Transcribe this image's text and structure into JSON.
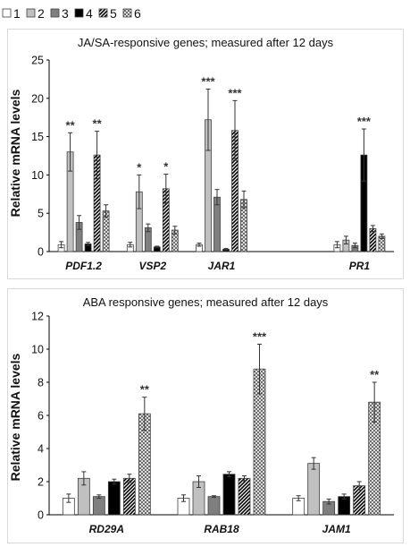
{
  "legend": [
    {
      "label": "1",
      "pattern": "white"
    },
    {
      "label": "2",
      "pattern": "lightgray"
    },
    {
      "label": "3",
      "pattern": "darkgray"
    },
    {
      "label": "4",
      "pattern": "black"
    },
    {
      "label": "5",
      "pattern": "diagonal-hatch"
    },
    {
      "label": "6",
      "pattern": "crosshatch"
    }
  ],
  "colors": {
    "c1": "#ffffff",
    "c2": "#c0c0c0",
    "c3": "#7f7f7f",
    "c4": "#000000",
    "border": "#404040"
  },
  "chart_data": [
    {
      "type": "bar",
      "title": "JA/SA-responsive genes; measured after 12 days",
      "ylabel": "Relative mRNA levels",
      "xlabel": "",
      "ylim": [
        0,
        25
      ],
      "yticks": [
        0,
        5,
        10,
        15,
        20,
        25
      ],
      "grid": false,
      "categories": [
        "PDF1.2",
        "VSP2",
        "JAR1",
        "",
        "PR1"
      ],
      "series": [
        {
          "name": "1",
          "values": [
            0.9,
            0.9,
            0.9,
            null,
            0.9
          ],
          "errors": [
            0.4,
            0.3,
            0.2,
            null,
            0.4
          ]
        },
        {
          "name": "2",
          "values": [
            13.0,
            7.8,
            17.2,
            null,
            1.5
          ],
          "errors": [
            2.5,
            2.2,
            4.0,
            null,
            0.5
          ]
        },
        {
          "name": "3",
          "values": [
            3.8,
            3.1,
            7.1,
            null,
            0.8
          ],
          "errors": [
            0.9,
            0.5,
            1.0,
            null,
            0.3
          ]
        },
        {
          "name": "4",
          "values": [
            1.0,
            0.6,
            0.3,
            null,
            12.6
          ],
          "errors": [
            0.2,
            0.1,
            0.1,
            null,
            3.4
          ]
        },
        {
          "name": "5",
          "values": [
            12.6,
            8.2,
            15.8,
            null,
            3.0
          ],
          "errors": [
            3.1,
            1.9,
            3.9,
            null,
            0.4
          ]
        },
        {
          "name": "6",
          "values": [
            5.3,
            2.8,
            6.8,
            null,
            2.0
          ],
          "errors": [
            0.8,
            0.5,
            1.1,
            null,
            0.3
          ]
        }
      ],
      "annotations": [
        {
          "category": "PDF1.2",
          "series": "2",
          "text": "**"
        },
        {
          "category": "PDF1.2",
          "series": "5",
          "text": "**"
        },
        {
          "category": "VSP2",
          "series": "2",
          "text": "*"
        },
        {
          "category": "VSP2",
          "series": "5",
          "text": "*"
        },
        {
          "category": "JAR1",
          "series": "2",
          "text": "***"
        },
        {
          "category": "JAR1",
          "series": "5",
          "text": "***"
        },
        {
          "category": "PR1",
          "series": "4",
          "text": "***"
        }
      ]
    },
    {
      "type": "bar",
      "title": "ABA responsive genes; measured after 12 days",
      "ylabel": "Relative mRNA levels",
      "xlabel": "",
      "ylim": [
        0,
        12
      ],
      "yticks": [
        0,
        2,
        4,
        6,
        8,
        10,
        12
      ],
      "grid": false,
      "categories": [
        "RD29A",
        "RAB18",
        "JAM1"
      ],
      "series": [
        {
          "name": "1",
          "values": [
            1.0,
            1.0,
            1.0
          ],
          "errors": [
            0.25,
            0.2,
            0.15
          ]
        },
        {
          "name": "2",
          "values": [
            2.2,
            2.0,
            3.1
          ],
          "errors": [
            0.4,
            0.35,
            0.35
          ]
        },
        {
          "name": "3",
          "values": [
            1.1,
            1.1,
            0.8
          ],
          "errors": [
            0.1,
            0.05,
            0.15
          ]
        },
        {
          "name": "4",
          "values": [
            2.0,
            2.45,
            1.1
          ],
          "errors": [
            0.15,
            0.15,
            0.15
          ]
        },
        {
          "name": "5",
          "values": [
            2.2,
            2.2,
            1.75
          ],
          "errors": [
            0.25,
            0.15,
            0.25
          ]
        },
        {
          "name": "6",
          "values": [
            6.1,
            8.8,
            6.8
          ],
          "errors": [
            1.0,
            1.5,
            1.2
          ]
        }
      ],
      "annotations": [
        {
          "category": "RD29A",
          "series": "6",
          "text": "**"
        },
        {
          "category": "RAB18",
          "series": "6",
          "text": "***"
        },
        {
          "category": "JAM1",
          "series": "6",
          "text": "**"
        }
      ]
    }
  ]
}
